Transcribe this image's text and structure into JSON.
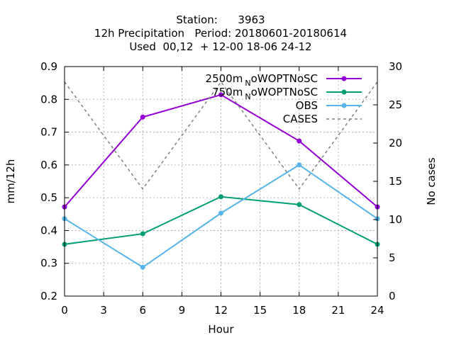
{
  "chart_data": {
    "type": "line",
    "title_lines": [
      "Station:      3963",
      "12h Precipitation   Period: 20180601-20180614",
      "Used  00,12  + 12-00 18-06 24-12"
    ],
    "xlabel": "Hour",
    "ylabel": "mm/12h",
    "y2label": "No cases",
    "xlim": [
      0,
      24
    ],
    "ylim": [
      0.2,
      0.9
    ],
    "y2lim": [
      0,
      30
    ],
    "x_ticks": [
      "0",
      "3",
      "6",
      "9",
      "12",
      "15",
      "18",
      "21",
      "24"
    ],
    "y_ticks": [
      "0.2",
      "0.3",
      "0.4",
      "0.5",
      "0.6",
      "0.7",
      "0.8",
      "0.9"
    ],
    "y2_ticks": [
      "0",
      "5",
      "10",
      "15",
      "20",
      "25",
      "30"
    ],
    "grid": true,
    "legend_position": "top-right",
    "x": [
      0,
      6,
      12,
      18,
      24
    ],
    "series": [
      {
        "legend_text": "2500m",
        "legend_sub": "N",
        "legend_rest": "oWOPTNoSC",
        "color": "#9400d3",
        "marker": "filled-circle",
        "axis": "left",
        "values": [
          0.472,
          0.746,
          0.814,
          0.673,
          0.472
        ]
      },
      {
        "legend_text": "750m",
        "legend_sub": "N",
        "legend_rest": "oWOPTNoSC",
        "color": "#009e73",
        "marker": "filled-circle",
        "axis": "left",
        "values": [
          0.358,
          0.39,
          0.503,
          0.479,
          0.358
        ]
      },
      {
        "legend_text": "OBS",
        "legend_sub": "",
        "legend_rest": "",
        "color": "#56b4e9",
        "marker": "filled-circle",
        "axis": "left",
        "values": [
          0.436,
          0.288,
          0.453,
          0.6,
          0.436
        ]
      },
      {
        "legend_text": "CASES",
        "legend_sub": "",
        "legend_rest": "",
        "color": "#808080",
        "marker": "none",
        "dashed": true,
        "axis": "right",
        "values": [
          28,
          14,
          28,
          14,
          28
        ]
      }
    ]
  }
}
